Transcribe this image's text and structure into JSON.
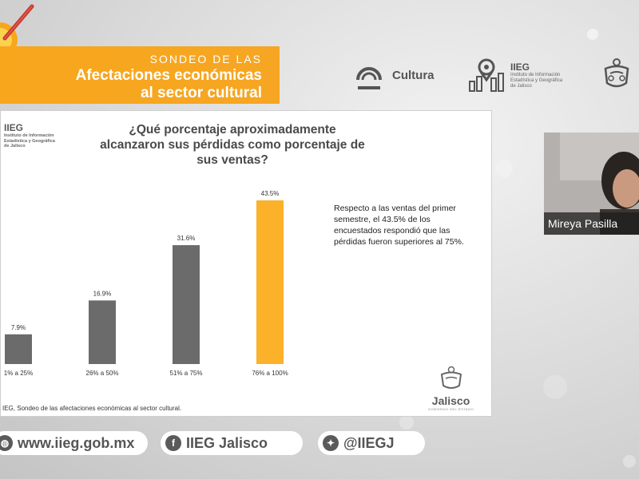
{
  "banner": {
    "line1": "SONDEO DE LAS",
    "line2": "Afectaciones económicas",
    "line3": "al sector cultural"
  },
  "logos": {
    "cultura": "Cultura",
    "iieg_title": "IIEG",
    "iieg_sub1": "Instituto de Información",
    "iieg_sub2": "Estadística y Geográfica",
    "iieg_sub3": "de Jalisco"
  },
  "slide": {
    "logo_title": "IIEG",
    "logo_sub1": "Instituto de Información",
    "logo_sub2": "Estadística y Geográfica",
    "logo_sub3": "de Jalisco",
    "question_line1": "¿Qué porcentaje aproximadamente",
    "question_line2": "alcanzaron sus pérdidas como porcentaje de",
    "question_line3": "sus ventas?",
    "note": "Respecto a las ventas del primer semestre, el 43.5% de los encuestados respondió que las pérdidas fueron superiores al 75%.",
    "source": "IEG, Sondeo de las afectaciones económicas al sector cultural.",
    "jalisco": "Jalisco",
    "jalisco_sub": "GOBIERNO DEL ESTADO"
  },
  "webcam": {
    "name": "Mireya Pasilla"
  },
  "footer": {
    "web": "www.iieg.gob.mx",
    "facebook": "IIEG Jalisco",
    "twitter": "@IIEGJ"
  },
  "colors": {
    "banner": "#f8a61c",
    "bar_gray": "#6b6b6b",
    "bar_highlight": "#fbb12a"
  },
  "chart_data": {
    "type": "bar",
    "categories": [
      "1% a 25%",
      "26% a 50%",
      "51% a 75%",
      "76% a 100%"
    ],
    "values": [
      7.9,
      16.9,
      31.6,
      43.5
    ],
    "labels": [
      "7.9%",
      "16.9%",
      "31.6%",
      "43.5%"
    ],
    "highlight_index": 3,
    "ylim": [
      0,
      43.5
    ],
    "grid": false
  }
}
